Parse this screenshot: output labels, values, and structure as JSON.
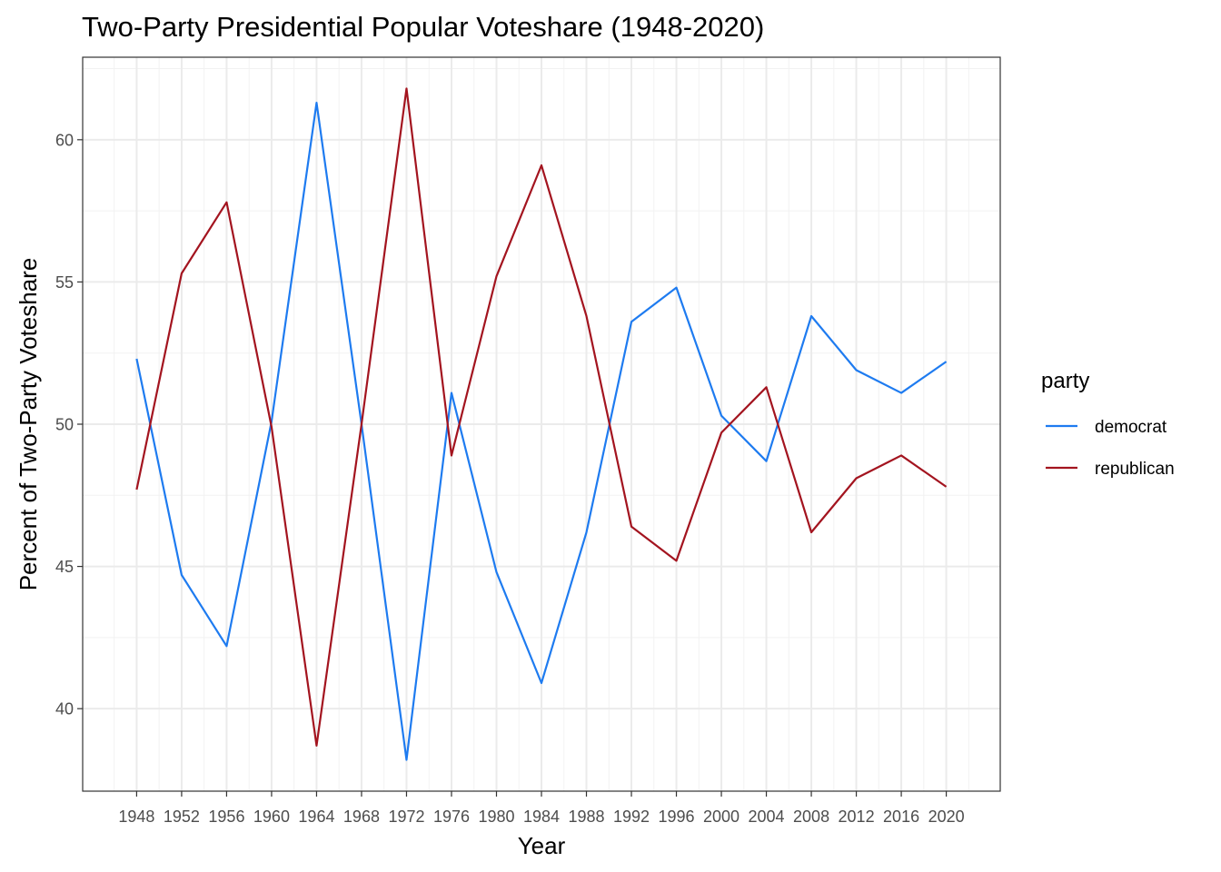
{
  "chart_data": {
    "type": "line",
    "title": "Two-Party Presidential Popular Voteshare (1948-2020)",
    "xlabel": "Year",
    "ylabel": "Percent of Two-Party Voteshare",
    "x": [
      1948,
      1952,
      1956,
      1960,
      1964,
      1968,
      1972,
      1976,
      1980,
      1984,
      1988,
      1992,
      1996,
      2000,
      2004,
      2008,
      2012,
      2016,
      2020
    ],
    "x_tick_labels": [
      "1948",
      "1952",
      "1956",
      "1960",
      "1964",
      "1968",
      "1972",
      "1976",
      "1980",
      "1984",
      "1988",
      "1992",
      "1996",
      "2000",
      "2004",
      "2008",
      "2012",
      "2016",
      "2020"
    ],
    "y_ticks": [
      40,
      45,
      50,
      55,
      60
    ],
    "y_tick_labels": [
      "40",
      "45",
      "50",
      "55",
      "60"
    ],
    "ylim": [
      37.1,
      62.9
    ],
    "grid": true,
    "legend": {
      "title": "party",
      "placement": "right"
    },
    "series": [
      {
        "name": "democrat",
        "color": "#1e7bf0",
        "values": [
          52.3,
          44.7,
          42.2,
          50.1,
          61.3,
          50.0,
          38.2,
          51.1,
          44.8,
          40.9,
          46.2,
          53.6,
          54.8,
          50.3,
          48.7,
          53.8,
          51.9,
          51.1,
          52.2
        ]
      },
      {
        "name": "republican",
        "color": "#a3141f",
        "values": [
          47.7,
          55.3,
          57.8,
          49.9,
          38.7,
          50.0,
          61.8,
          48.9,
          55.2,
          59.1,
          53.8,
          46.4,
          45.2,
          49.7,
          51.3,
          46.2,
          48.1,
          48.9,
          47.8
        ]
      }
    ]
  }
}
